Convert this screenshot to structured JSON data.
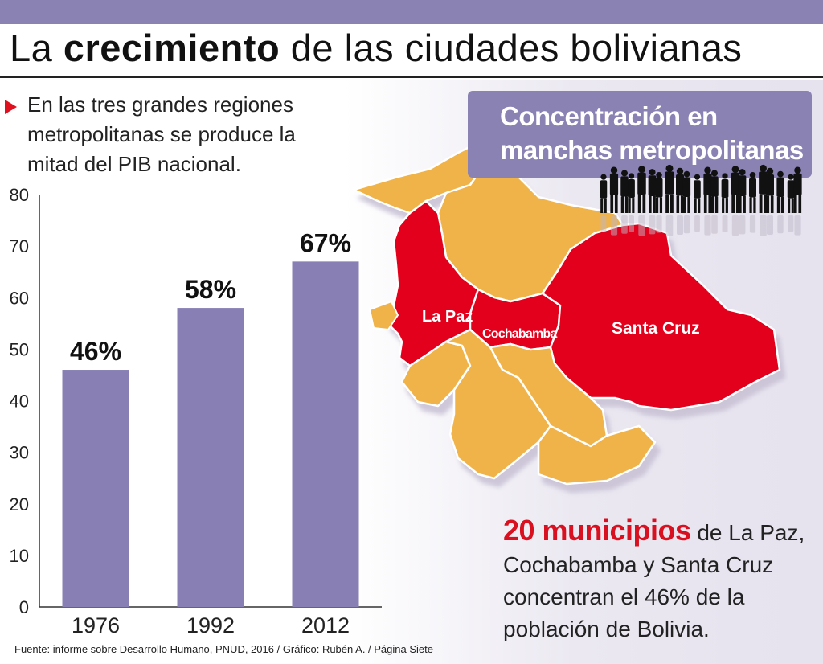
{
  "headline": {
    "prefix": "La ",
    "emphasis": "crecimiento",
    "suffix": " de las ciudades bolivianas"
  },
  "intro_text": "En las  tres grandes regiones metropolitanas se produce la mitad del PIB nacional.",
  "chart_data": {
    "type": "bar",
    "title": "",
    "xlabel": "",
    "ylabel": "",
    "categories": [
      "1976",
      "1992",
      "2012"
    ],
    "values": [
      46,
      58,
      67
    ],
    "value_labels": [
      "46%",
      "58%",
      "67%"
    ],
    "ylim": [
      0,
      80
    ],
    "yticks": [
      0,
      10,
      20,
      30,
      40,
      50,
      60,
      70,
      80
    ],
    "grid": false,
    "bar_color": "#8880b5"
  },
  "source_text": "Fuente: informe sobre Desarrollo Humano, PNUD, 2016 / Gráfico: Rubén A. / Página Siete",
  "map": {
    "title": "Concentración en manchas metropolitanas",
    "regions": [
      {
        "label": "La Paz",
        "highlighted": true
      },
      {
        "label": "Cochabamba",
        "highlighted": true
      },
      {
        "label": "Santa Cruz",
        "highlighted": true
      }
    ],
    "highlight_color": "#e2001a",
    "base_color": "#f0b34a"
  },
  "note": {
    "strong": "20 municipios",
    "rest": " de La Paz, Cochabamba y Santa Cruz concentran el 46% de la población de Bolivia."
  },
  "colors": {
    "accent": "#8b82b4",
    "bars": "#8880b5",
    "highlight": "#e2001a",
    "map_base": "#f0b34a"
  }
}
